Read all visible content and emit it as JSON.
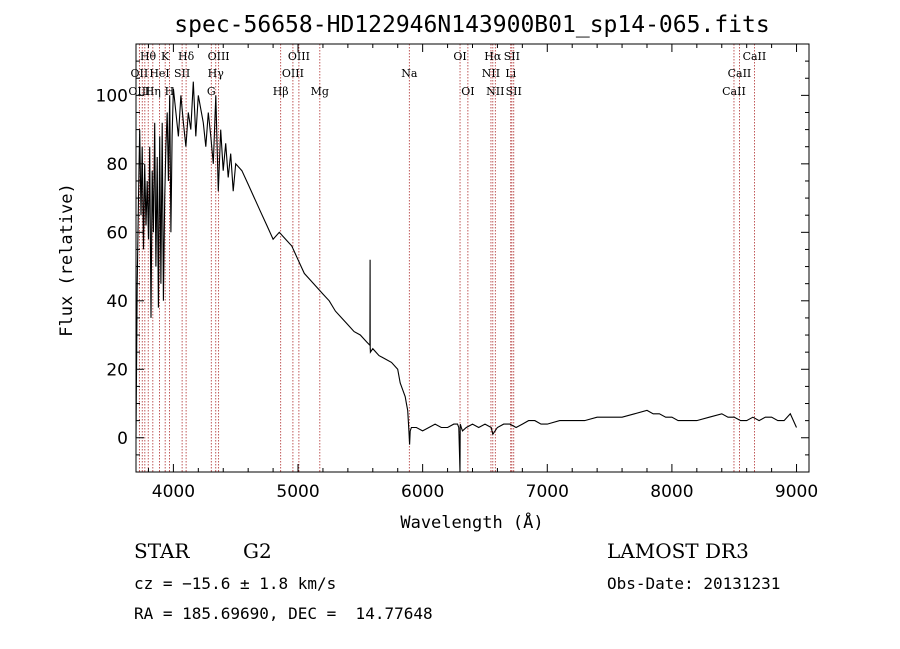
{
  "chart_data": {
    "type": "line",
    "title": "spec-56658-HD122946N143900B01_sp14-065.fits",
    "xlabel": "Wavelength (Å)",
    "ylabel": "Flux (relative)",
    "xlim": [
      3700,
      9100
    ],
    "ylim": [
      -10,
      115
    ],
    "x_ticks": [
      4000,
      5000,
      6000,
      7000,
      8000,
      9000
    ],
    "y_ticks": [
      0,
      20,
      40,
      60,
      80,
      100
    ],
    "grid": false,
    "series": [
      {
        "x": [
          3700,
          3710,
          3720,
          3730,
          3740,
          3750,
          3760,
          3770,
          3780,
          3790,
          3800,
          3810,
          3820,
          3830,
          3840,
          3850,
          3860,
          3870,
          3880,
          3890,
          3900,
          3910,
          3920,
          3930,
          3940,
          3950,
          3960,
          3970,
          3980,
          3990,
          4000,
          4020,
          4040,
          4060,
          4080,
          4100,
          4120,
          4140,
          4160,
          4180,
          4200,
          4220,
          4240,
          4260,
          4280,
          4300,
          4320,
          4340,
          4360,
          4380,
          4400,
          4420,
          4440,
          4460,
          4480,
          4500,
          4550,
          4600,
          4650,
          4700,
          4750,
          4800,
          4850,
          4900,
          4950,
          5000,
          5050,
          5100,
          5150,
          5200,
          5250,
          5300,
          5350,
          5400,
          5450,
          5500,
          5550,
          5577,
          5578,
          5579,
          5580,
          5581,
          5600,
          5650,
          5700,
          5750,
          5800,
          5820,
          5840,
          5860,
          5870,
          5880,
          5890,
          5895,
          5900,
          5910,
          5950,
          6000,
          6050,
          6100,
          6150,
          6200,
          6250,
          6280,
          6290,
          6300,
          6301,
          6302,
          6310,
          6320,
          6350,
          6400,
          6450,
          6500,
          6550,
          6563,
          6600,
          6650,
          6700,
          6750,
          6800,
          6850,
          6900,
          6950,
          7000,
          7100,
          7200,
          7300,
          7400,
          7500,
          7600,
          7700,
          7800,
          7850,
          7900,
          7950,
          8000,
          8050,
          8100,
          8200,
          8300,
          8400,
          8450,
          8500,
          8550,
          8600,
          8650,
          8700,
          8750,
          8800,
          8850,
          8900,
          8950,
          9000
        ],
        "y": [
          0,
          45,
          70,
          90,
          65,
          85,
          55,
          80,
          62,
          75,
          58,
          85,
          35,
          78,
          60,
          92,
          50,
          82,
          38,
          88,
          45,
          92,
          40,
          70,
          85,
          95,
          75,
          100,
          60,
          88,
          102,
          95,
          88,
          100,
          92,
          85,
          95,
          90,
          104,
          88,
          100,
          96,
          92,
          85,
          95,
          88,
          80,
          100,
          72,
          90,
          78,
          86,
          76,
          83,
          72,
          80,
          78,
          74,
          70,
          66,
          62,
          58,
          60,
          58,
          56,
          52,
          48,
          46,
          44,
          42,
          40,
          37,
          35,
          33,
          31,
          30,
          28,
          27,
          52,
          26,
          26,
          25,
          26,
          24,
          23,
          22,
          20,
          16,
          14,
          12,
          10,
          8,
          2,
          -2,
          2,
          3,
          3,
          2,
          3,
          4,
          3,
          3,
          4,
          4,
          3,
          -10,
          3,
          4,
          3,
          2,
          3,
          4,
          3,
          4,
          3,
          1,
          3,
          4,
          4,
          3,
          4,
          5,
          5,
          4,
          4,
          5,
          5,
          5,
          6,
          6,
          6,
          7,
          8,
          7,
          7,
          6,
          6,
          5,
          5,
          5,
          6,
          7,
          6,
          6,
          5,
          5,
          6,
          5,
          6,
          6,
          5,
          5,
          7,
          3
        ]
      }
    ],
    "annotations": [
      {
        "label": "Hθ",
        "x": 3797,
        "row": 1
      },
      {
        "label": "OII",
        "x": 3727,
        "row": 2
      },
      {
        "label": "OIII",
        "x": 3727,
        "row": 3
      },
      {
        "label": "Hη",
        "x": 3835,
        "row": 3
      },
      {
        "label": "K",
        "x": 3934,
        "row": 1
      },
      {
        "label": "HeI",
        "x": 3889,
        "row": 2
      },
      {
        "label": "H",
        "x": 3968,
        "row": 3
      },
      {
        "label": "Hδ",
        "x": 4102,
        "row": 1
      },
      {
        "label": "SII",
        "x": 4070,
        "row": 2
      },
      {
        "label": "OIII",
        "x": 4363,
        "row": 1
      },
      {
        "label": "Hγ",
        "x": 4340,
        "row": 2
      },
      {
        "label": "G",
        "x": 4304,
        "row": 3
      },
      {
        "label": "OIII",
        "x": 5007,
        "row": 1
      },
      {
        "label": "OIII",
        "x": 4959,
        "row": 2
      },
      {
        "label": "Hβ",
        "x": 4861,
        "row": 3
      },
      {
        "label": "Mg",
        "x": 5175,
        "row": 3
      },
      {
        "label": "Na",
        "x": 5893,
        "row": 2
      },
      {
        "label": "OI",
        "x": 6300,
        "row": 1
      },
      {
        "label": "OI",
        "x": 6363,
        "row": 3
      },
      {
        "label": "Hα",
        "x": 6563,
        "row": 1
      },
      {
        "label": "SII",
        "x": 6716,
        "row": 1
      },
      {
        "label": "NII",
        "x": 6548,
        "row": 2
      },
      {
        "label": "Li",
        "x": 6707,
        "row": 2
      },
      {
        "label": "NII",
        "x": 6583,
        "row": 3
      },
      {
        "label": "SII",
        "x": 6731,
        "row": 3
      },
      {
        "label": "CaII",
        "x": 8662,
        "row": 1
      },
      {
        "label": "CaII",
        "x": 8542,
        "row": 2
      },
      {
        "label": "CaII",
        "x": 8498,
        "row": 3
      }
    ],
    "line_marks": [
      3727,
      3750,
      3771,
      3798,
      3835,
      3889,
      3934,
      3968,
      4070,
      4102,
      4304,
      4340,
      4363,
      4861,
      4959,
      5007,
      5175,
      5893,
      6300,
      6363,
      6548,
      6563,
      6583,
      6707,
      6716,
      6731,
      8498,
      8542,
      8662
    ],
    "line_color": "#b03030"
  },
  "info": {
    "object_type": "STAR",
    "subclass": "G2",
    "survey": "LAMOST DR3",
    "cz": "cz = −15.6 ± 1.8 km/s",
    "obs_date": "Obs-Date: 20131231",
    "coords": "RA = 185.69690, DEC =  14.77648"
  }
}
